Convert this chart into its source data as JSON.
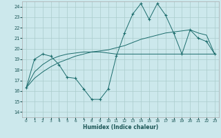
{
  "title": "",
  "xlabel": "Humidex (Indice chaleur)",
  "ylabel": "",
  "xlim": [
    -0.5,
    23.5
  ],
  "ylim": [
    13.5,
    24.5
  ],
  "yticks": [
    14,
    15,
    16,
    17,
    18,
    19,
    20,
    21,
    22,
    23,
    24
  ],
  "xticks": [
    0,
    1,
    2,
    3,
    4,
    5,
    6,
    7,
    8,
    9,
    10,
    11,
    12,
    13,
    14,
    15,
    16,
    17,
    18,
    19,
    20,
    21,
    22,
    23
  ],
  "bg_color": "#cce8ec",
  "grid_color": "#aacccc",
  "line_color": "#1a6b6b",
  "line1_x": [
    0,
    1,
    2,
    3,
    4,
    5,
    6,
    7,
    8,
    9,
    10,
    11,
    12,
    13,
    14,
    15,
    16,
    17,
    18,
    19,
    20,
    21,
    22,
    23
  ],
  "line1_y": [
    16.3,
    19.0,
    19.5,
    19.3,
    18.5,
    17.3,
    17.2,
    16.2,
    15.2,
    15.2,
    16.2,
    19.3,
    21.5,
    23.3,
    24.3,
    22.8,
    24.3,
    23.2,
    21.5,
    19.5,
    21.8,
    21.0,
    20.7,
    19.5
  ],
  "line2_x": [
    0,
    1,
    2,
    3,
    4,
    5,
    6,
    7,
    8,
    9,
    10,
    11,
    12,
    13,
    14,
    15,
    16,
    17,
    18,
    19,
    20,
    21,
    22,
    23
  ],
  "line2_y": [
    16.3,
    17.2,
    17.8,
    18.3,
    18.7,
    19.0,
    19.3,
    19.5,
    19.7,
    19.8,
    19.9,
    20.1,
    20.3,
    20.6,
    20.9,
    21.1,
    21.3,
    21.5,
    21.6,
    21.7,
    21.8,
    21.5,
    21.3,
    19.5
  ],
  "line3_x": [
    0,
    1,
    2,
    3,
    4,
    5,
    6,
    7,
    8,
    9,
    10,
    11,
    12,
    13,
    14,
    15,
    16,
    17,
    18,
    19,
    20,
    21,
    22,
    23
  ],
  "line3_y": [
    16.3,
    17.8,
    18.5,
    19.0,
    19.3,
    19.5,
    19.6,
    19.7,
    19.7,
    19.7,
    19.6,
    19.5,
    19.5,
    19.5,
    19.5,
    19.5,
    19.5,
    19.5,
    19.5,
    19.5,
    19.5,
    19.5,
    19.5,
    19.5
  ]
}
